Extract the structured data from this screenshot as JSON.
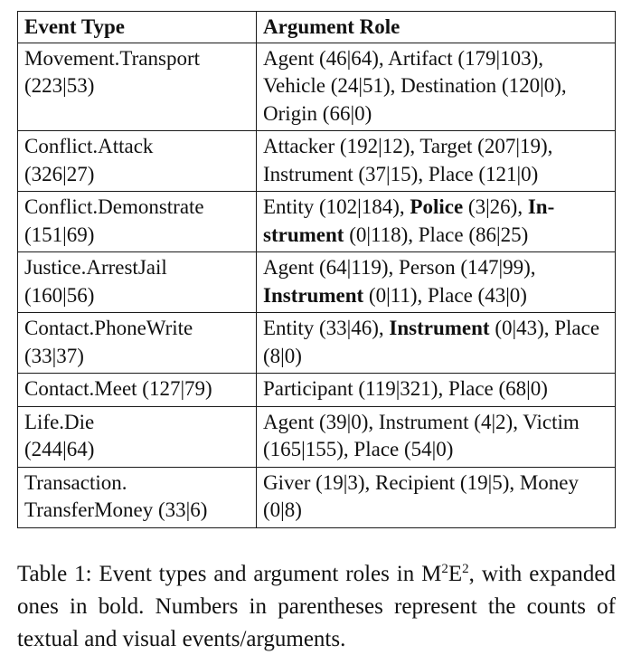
{
  "table": {
    "headers": {
      "event_type": "Event Type",
      "argument_role": "Argument Role"
    },
    "rows": [
      {
        "event": [
          "Movement.Transport",
          "(223|53)"
        ],
        "roles": [
          {
            "t": "Agent (46|64), Artifact (179|103), Vehicle (24|51), Destination (120|0), Origin (66|0)",
            "b": false
          }
        ]
      },
      {
        "event": [
          "Conflict.Attack",
          "(326|27)"
        ],
        "roles": [
          {
            "t": "Attacker (192|12), Target (207|19), Instrument (37|15), Place (121|0)",
            "b": false
          }
        ]
      },
      {
        "event": [
          "Conflict.Demonstrate",
          "(151|69)"
        ],
        "roles": [
          {
            "t": "Entity (102|184), ",
            "b": false
          },
          {
            "t": "Police",
            "b": true
          },
          {
            "t": " (3|26), ",
            "b": false
          },
          {
            "t": "In-strument",
            "b": true
          },
          {
            "t": " (0|118), Place (86|25)",
            "b": false
          }
        ]
      },
      {
        "event": [
          "Justice.ArrestJail",
          "(160|56)"
        ],
        "roles": [
          {
            "t": "Agent (64|119), Person (147|99), ",
            "b": false
          },
          {
            "t": "Instrument",
            "b": true
          },
          {
            "t": " (0|11), Place (43|0)",
            "b": false
          }
        ]
      },
      {
        "event": [
          "Contact.PhoneWrite",
          "(33|37)"
        ],
        "roles": [
          {
            "t": "Entity (33|46), ",
            "b": false
          },
          {
            "t": "Instrument",
            "b": true
          },
          {
            "t": " (0|43), Place (8|0)",
            "b": false
          }
        ]
      },
      {
        "event": [
          "Contact.Meet (127|79)"
        ],
        "roles": [
          {
            "t": "Participant (119|321), Place (68|0)",
            "b": false
          }
        ]
      },
      {
        "event": [
          "Life.Die",
          "(244|64)"
        ],
        "roles": [
          {
            "t": "Agent (39|0), Instrument (4|2), Victim (165|155), Place (54|0)",
            "b": false
          }
        ]
      },
      {
        "event": [
          "Transaction.",
          "TransferMoney (33|6)"
        ],
        "roles": [
          {
            "t": "Giver (19|3), Recipient (19|5), Money (0|8)",
            "b": false
          }
        ]
      }
    ]
  },
  "caption": {
    "prefix": "Table 1: Event types and argument roles in M",
    "sup1": "2",
    "mid": "E",
    "sup2": "2",
    "suffix": ", with expanded ones in bold. Numbers in parentheses represent the counts of textual and visual events/arguments."
  }
}
